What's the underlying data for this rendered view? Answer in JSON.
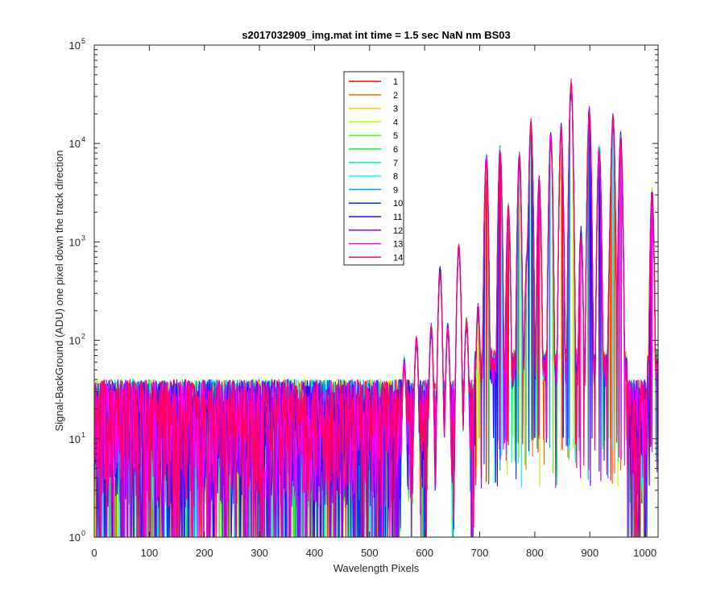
{
  "chart_data": {
    "type": "line",
    "title": "s2017032909_img.mat int time = 1.5 sec  NaN nm BS03",
    "xlabel": "Wavelength Pixels",
    "ylabel": "Signal-BackGround (ADU) one pixel down the track direction",
    "xlim": [
      0,
      1024
    ],
    "ylim": [
      1,
      100000
    ],
    "yscale": "log",
    "x_ticks": [
      0,
      100,
      200,
      300,
      400,
      500,
      600,
      700,
      800,
      900,
      1000
    ],
    "y_ticks": [
      {
        "base": "10",
        "exp": "0",
        "value": 1
      },
      {
        "base": "10",
        "exp": "1",
        "value": 10
      },
      {
        "base": "10",
        "exp": "2",
        "value": 100
      },
      {
        "base": "10",
        "exp": "3",
        "value": 1000
      },
      {
        "base": "10",
        "exp": "4",
        "value": 10000
      },
      {
        "base": "10",
        "exp": "5",
        "value": 100000
      }
    ],
    "grid": false,
    "legend_position": "upper-center",
    "series": [
      {
        "name": "1",
        "color": "#ff0000"
      },
      {
        "name": "2",
        "color": "#ff6a00"
      },
      {
        "name": "3",
        "color": "#ffcc00"
      },
      {
        "name": "4",
        "color": "#b8ff00"
      },
      {
        "name": "5",
        "color": "#4cff00"
      },
      {
        "name": "6",
        "color": "#00ff33"
      },
      {
        "name": "7",
        "color": "#00ff99"
      },
      {
        "name": "8",
        "color": "#00ffff"
      },
      {
        "name": "9",
        "color": "#0099ff"
      },
      {
        "name": "10",
        "color": "#0033ff"
      },
      {
        "name": "11",
        "color": "#3300ff"
      },
      {
        "name": "12",
        "color": "#9900ff"
      },
      {
        "name": "13",
        "color": "#ff00ff"
      },
      {
        "name": "14",
        "color": "#ff0066"
      }
    ],
    "peaks": [
      {
        "x": 563,
        "y": 60
      },
      {
        "x": 585,
        "y": 100
      },
      {
        "x": 612,
        "y": 130
      },
      {
        "x": 628,
        "y": 500
      },
      {
        "x": 642,
        "y": 130
      },
      {
        "x": 662,
        "y": 850
      },
      {
        "x": 676,
        "y": 150
      },
      {
        "x": 697,
        "y": 200
      },
      {
        "x": 712,
        "y": 7000
      },
      {
        "x": 737,
        "y": 8000
      },
      {
        "x": 752,
        "y": 2100
      },
      {
        "x": 772,
        "y": 7000
      },
      {
        "x": 786,
        "y": 700
      },
      {
        "x": 793,
        "y": 15000
      },
      {
        "x": 808,
        "y": 4000
      },
      {
        "x": 829,
        "y": 11000
      },
      {
        "x": 848,
        "y": 14000
      },
      {
        "x": 866,
        "y": 38000
      },
      {
        "x": 884,
        "y": 1200
      },
      {
        "x": 899,
        "y": 20000
      },
      {
        "x": 917,
        "y": 8500
      },
      {
        "x": 938,
        "y": 900
      },
      {
        "x": 942,
        "y": 17000
      },
      {
        "x": 956,
        "y": 11000
      },
      {
        "x": 1013,
        "y": 3000
      }
    ],
    "noise_floor_region": [
      0,
      690
    ],
    "noise_floor_typical": [
      2,
      40
    ]
  }
}
